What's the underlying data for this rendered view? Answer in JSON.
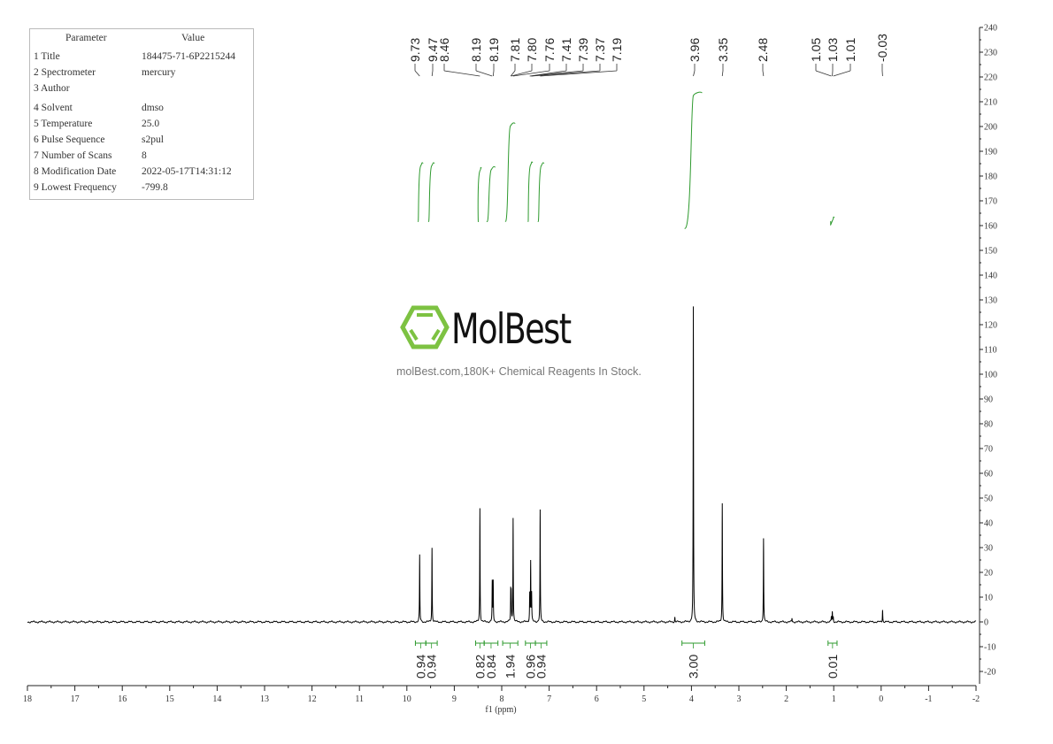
{
  "parameters": {
    "header": {
      "parameter": "Parameter",
      "value": "Value"
    },
    "rows": [
      {
        "label": "1 Title",
        "value": "184475-71-6P2215244"
      },
      {
        "label": "2 Spectrometer",
        "value": "mercury"
      },
      {
        "label": "3 Author",
        "value": ""
      },
      {
        "label": "4 Solvent",
        "value": "dmso"
      },
      {
        "label": "5 Temperature",
        "value": "25.0"
      },
      {
        "label": "6 Pulse Sequence",
        "value": "s2pul"
      },
      {
        "label": "7 Number of Scans",
        "value": "8"
      },
      {
        "label": "8 Modification Date",
        "value": "2022-05-17T14:31:12"
      },
      {
        "label": "9 Lowest Frequency",
        "value": "-799.8"
      }
    ]
  },
  "watermark": {
    "brand": "MolBest",
    "tagline": "molBest.com,180K+ Chemical Reagents In Stock.",
    "brand_color": "#7dc242"
  },
  "chart_data": {
    "type": "line",
    "title": "",
    "xlabel": "f1 (ppm)",
    "ylabel": "",
    "xlim": [
      18,
      -2
    ],
    "ylim": [
      -25,
      240
    ],
    "x_ticks": [
      "18",
      "17",
      "16",
      "15",
      "14",
      "13",
      "12",
      "11",
      "10",
      "9",
      "8",
      "7",
      "6",
      "5",
      "4",
      "3",
      "2",
      "1",
      "0",
      "-1",
      "-2"
    ],
    "y_ticks": [
      "240",
      "230",
      "220",
      "210",
      "200",
      "190",
      "180",
      "170",
      "160",
      "150",
      "140",
      "130",
      "120",
      "110",
      "100",
      "90",
      "80",
      "70",
      "60",
      "50",
      "40",
      "30",
      "20",
      "10",
      "0",
      "-10",
      "-20"
    ],
    "grid": false,
    "spectrum_color": "#000000",
    "integral_color": "#2e9a2e",
    "peaks": [
      {
        "ppm": 9.73,
        "height": 27
      },
      {
        "ppm": 9.47,
        "height": 30
      },
      {
        "ppm": 8.46,
        "height": 46
      },
      {
        "ppm": 8.2,
        "height": 16
      },
      {
        "ppm": 8.18,
        "height": 16
      },
      {
        "ppm": 7.81,
        "height": 12
      },
      {
        "ppm": 7.8,
        "height": 11
      },
      {
        "ppm": 7.76,
        "height": 42
      },
      {
        "ppm": 7.41,
        "height": 11
      },
      {
        "ppm": 7.39,
        "height": 24
      },
      {
        "ppm": 7.37,
        "height": 11
      },
      {
        "ppm": 7.19,
        "height": 45
      },
      {
        "ppm": 4.35,
        "height": 2
      },
      {
        "ppm": 3.96,
        "height": 127
      },
      {
        "ppm": 3.35,
        "height": 48
      },
      {
        "ppm": 2.48,
        "height": 34
      },
      {
        "ppm": 1.88,
        "height": 1.5
      },
      {
        "ppm": 1.05,
        "height": 2
      },
      {
        "ppm": 1.03,
        "height": 4
      },
      {
        "ppm": 1.01,
        "height": 2
      },
      {
        "ppm": -0.03,
        "height": 5
      }
    ],
    "peak_labels": [
      "9.73",
      "9.47",
      "8.46",
      "8.19",
      "8.19",
      "7.81",
      "7.80",
      "7.76",
      "7.41",
      "7.39",
      "7.37",
      "7.19",
      "3.96",
      "3.35",
      "2.48",
      "1.05",
      "1.03",
      "1.01",
      "-0.03"
    ],
    "integrals": [
      {
        "from": 9.82,
        "to": 9.6,
        "value": "0.94"
      },
      {
        "from": 9.6,
        "to": 9.36,
        "value": "0.94"
      },
      {
        "from": 8.55,
        "to": 8.37,
        "value": "0.82"
      },
      {
        "from": 8.37,
        "to": 8.08,
        "value": "0.84"
      },
      {
        "from": 7.98,
        "to": 7.66,
        "value": "1.94"
      },
      {
        "from": 7.5,
        "to": 7.29,
        "value": "0.96"
      },
      {
        "from": 7.29,
        "to": 7.05,
        "value": "0.94"
      },
      {
        "from": 4.2,
        "to": 3.72,
        "value": "3.00"
      },
      {
        "from": 1.12,
        "to": 0.93,
        "value": "0.01"
      }
    ]
  }
}
